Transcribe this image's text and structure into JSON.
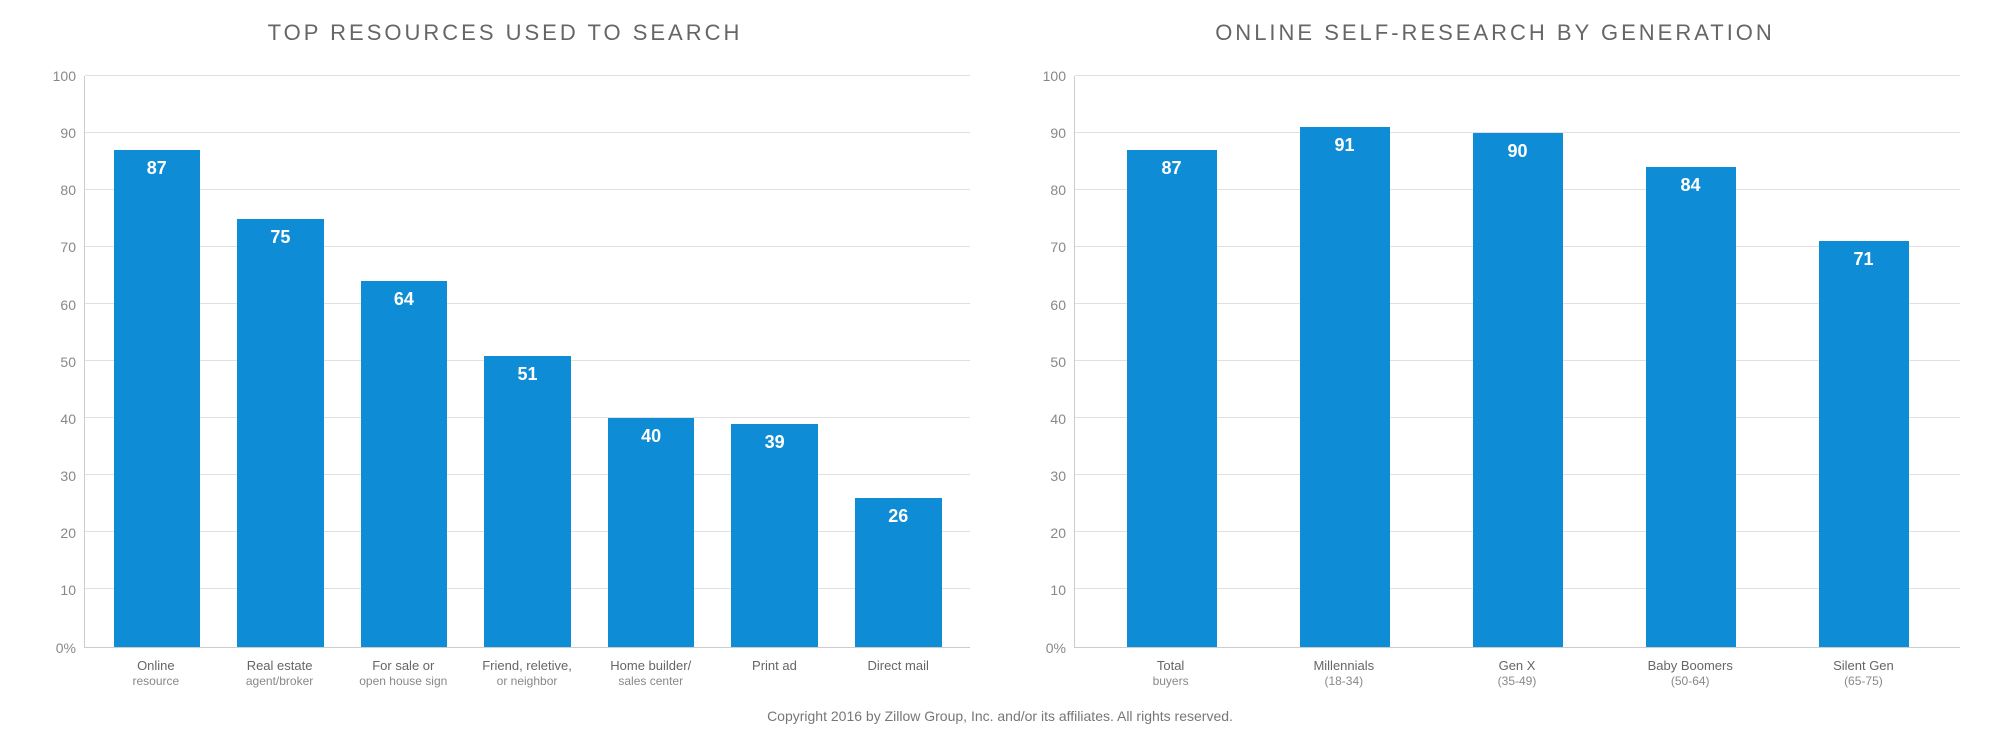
{
  "copyright": "Copyright 2016 by Zillow Group, Inc. and/or its affiliates. All rights reserved.",
  "charts": [
    {
      "title": "TOP RESOURCES USED TO SEARCH",
      "type": "bar",
      "ylim": [
        0,
        100
      ],
      "ytick_step": 10,
      "ytick_suffix_on_zero": "%",
      "bar_color": "#0e8cd6",
      "bar_width_pct": 70,
      "value_label_color": "#ffffff",
      "value_label_fontsize": 18,
      "axis_label_fontsize": 14,
      "axis_color": "#cccccc",
      "grid_color": "#e0e0e0",
      "title_color": "#666666",
      "title_fontsize": 22,
      "title_letter_spacing": 3,
      "background_color": "#ffffff",
      "categories": [
        {
          "label": "Online",
          "sub": "resource"
        },
        {
          "label": "Real estate",
          "sub": "agent/broker"
        },
        {
          "label": "For sale or",
          "sub": "open house sign"
        },
        {
          "label": "Friend, reletive,",
          "sub": "or neighbor"
        },
        {
          "label": "Home builder/",
          "sub": "sales center"
        },
        {
          "label": "Print ad",
          "sub": ""
        },
        {
          "label": "Direct mail",
          "sub": ""
        }
      ],
      "values": [
        87,
        75,
        64,
        51,
        40,
        39,
        26
      ]
    },
    {
      "title": "ONLINE SELF-RESEARCH BY GENERATION",
      "type": "bar",
      "ylim": [
        0,
        100
      ],
      "ytick_step": 10,
      "ytick_suffix_on_zero": "%",
      "bar_color": "#0e8cd6",
      "bar_width_pct": 70,
      "value_label_color": "#ffffff",
      "value_label_fontsize": 18,
      "axis_label_fontsize": 14,
      "axis_color": "#cccccc",
      "grid_color": "#e0e0e0",
      "title_color": "#666666",
      "title_fontsize": 22,
      "title_letter_spacing": 3,
      "background_color": "#ffffff",
      "categories": [
        {
          "label": "Total",
          "sub": "buyers"
        },
        {
          "label": "Millennials",
          "sub": "(18-34)"
        },
        {
          "label": "Gen X",
          "sub": "(35-49)"
        },
        {
          "label": "Baby Boomers",
          "sub": "(50-64)"
        },
        {
          "label": "Silent Gen",
          "sub": "(65-75)"
        }
      ],
      "values": [
        87,
        91,
        90,
        84,
        71
      ]
    }
  ]
}
